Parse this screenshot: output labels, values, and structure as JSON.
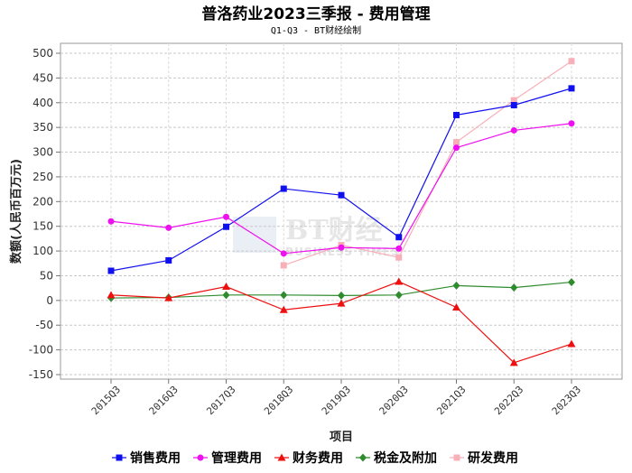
{
  "chart_data": {
    "type": "line",
    "title": "普洛药业2023三季报 - 费用管理",
    "subtitle": "Q1-Q3 - BT财经绘制",
    "xlabel": "项目",
    "ylabel": "数额(人民币百万元)",
    "ylim": [
      -150,
      500
    ],
    "yticks": [
      500,
      450,
      400,
      350,
      300,
      250,
      200,
      150,
      100,
      50,
      0,
      -50,
      -100,
      -150
    ],
    "grid": true,
    "legend_position": "bottom",
    "categories": [
      "2015Q3",
      "2016Q3",
      "2017Q3",
      "2018Q3",
      "2019Q3",
      "2020Q3",
      "2021Q3",
      "2022Q3",
      "2023Q3"
    ],
    "series": [
      {
        "name": "销售费用",
        "color": "#1010ee",
        "marker": "square",
        "values": [
          60,
          81,
          149,
          226,
          213,
          128,
          375,
          395,
          429
        ]
      },
      {
        "name": "管理费用",
        "color": "#ee10ee",
        "marker": "circle",
        "values": [
          160,
          147,
          169,
          95,
          107,
          105,
          309,
          344,
          358
        ]
      },
      {
        "name": "财务费用",
        "color": "#ee1010",
        "marker": "triangle",
        "values": [
          11,
          5,
          28,
          -19,
          -6,
          38,
          -14,
          -126,
          -88
        ]
      },
      {
        "name": "税金及附加",
        "color": "#2e8b2e",
        "marker": "diamond",
        "values": [
          5,
          6,
          11,
          11,
          10,
          11,
          30,
          26,
          37
        ]
      },
      {
        "name": "研发费用",
        "color": "#f8b0b8",
        "marker": "square",
        "values": [
          null,
          null,
          null,
          71,
          112,
          87,
          320,
          405,
          484
        ]
      }
    ]
  },
  "watermark": {
    "main": "BT财经",
    "sub": "BUSINESS TIMES"
  }
}
